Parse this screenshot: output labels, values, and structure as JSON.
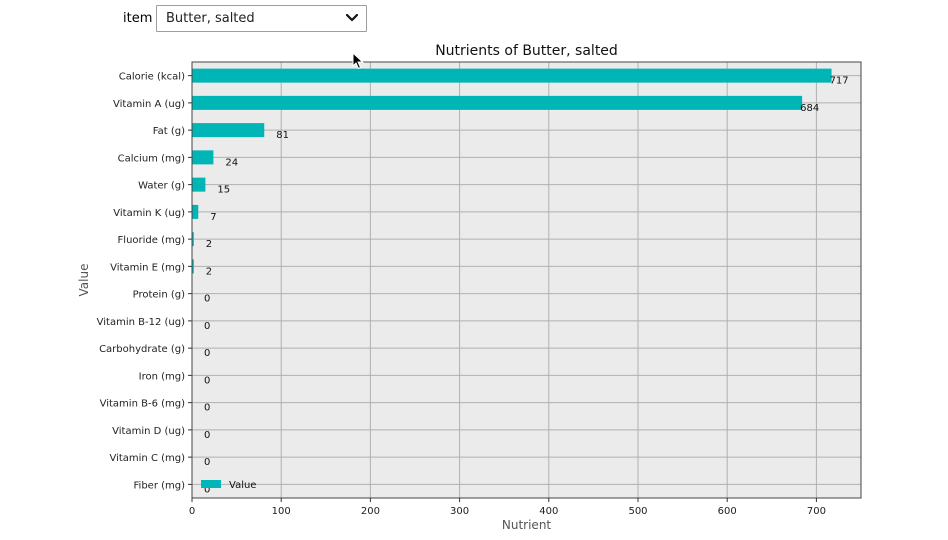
{
  "controls": {
    "item_label": "item",
    "item_selected": "Butter, salted"
  },
  "icons": {
    "dropdown": "chevron-down-icon",
    "cursor": "mouse-pointer-icon"
  },
  "colors": {
    "bar": "#00b5b5",
    "plot_bg": "#ebebeb",
    "grid": "#b0b0b0"
  },
  "chart_data": {
    "type": "bar",
    "orientation": "horizontal",
    "title": "Nutrients of Butter, salted",
    "xlabel": "Nutrient",
    "ylabel": "Value",
    "xlim": [
      0,
      750
    ],
    "xticks": [
      0,
      100,
      200,
      300,
      400,
      500,
      600,
      700
    ],
    "grid": true,
    "legend": {
      "entries": [
        "Value"
      ],
      "position": "bottom-left"
    },
    "categories": [
      "Calorie (kcal)",
      "Vitamin A (ug)",
      "Fat (g)",
      "Calcium (mg)",
      "Water (g)",
      "Vitamin K (ug)",
      "Fluoride (mg)",
      "Vitamin E (mg)",
      "Protein (g)",
      "Vitamin B-12 (ug)",
      "Carbohydrate (g)",
      "Iron (mg)",
      "Vitamin B-6 (mg)",
      "Vitamin D (ug)",
      "Vitamin C (mg)",
      "Fiber (mg)"
    ],
    "values": [
      717,
      684,
      81,
      24,
      15,
      7,
      2,
      2,
      0,
      0,
      0,
      0,
      0,
      0,
      0,
      0
    ],
    "series": [
      {
        "name": "Value",
        "values": [
          717,
          684,
          81,
          24,
          15,
          7,
          2,
          2,
          0,
          0,
          0,
          0,
          0,
          0,
          0,
          0
        ],
        "data_labels": [
          "717",
          "684",
          "81",
          "24",
          "15",
          "7",
          "2",
          "2",
          "0",
          "0",
          "0",
          "0",
          "0",
          "0",
          "0",
          "0"
        ]
      }
    ]
  }
}
